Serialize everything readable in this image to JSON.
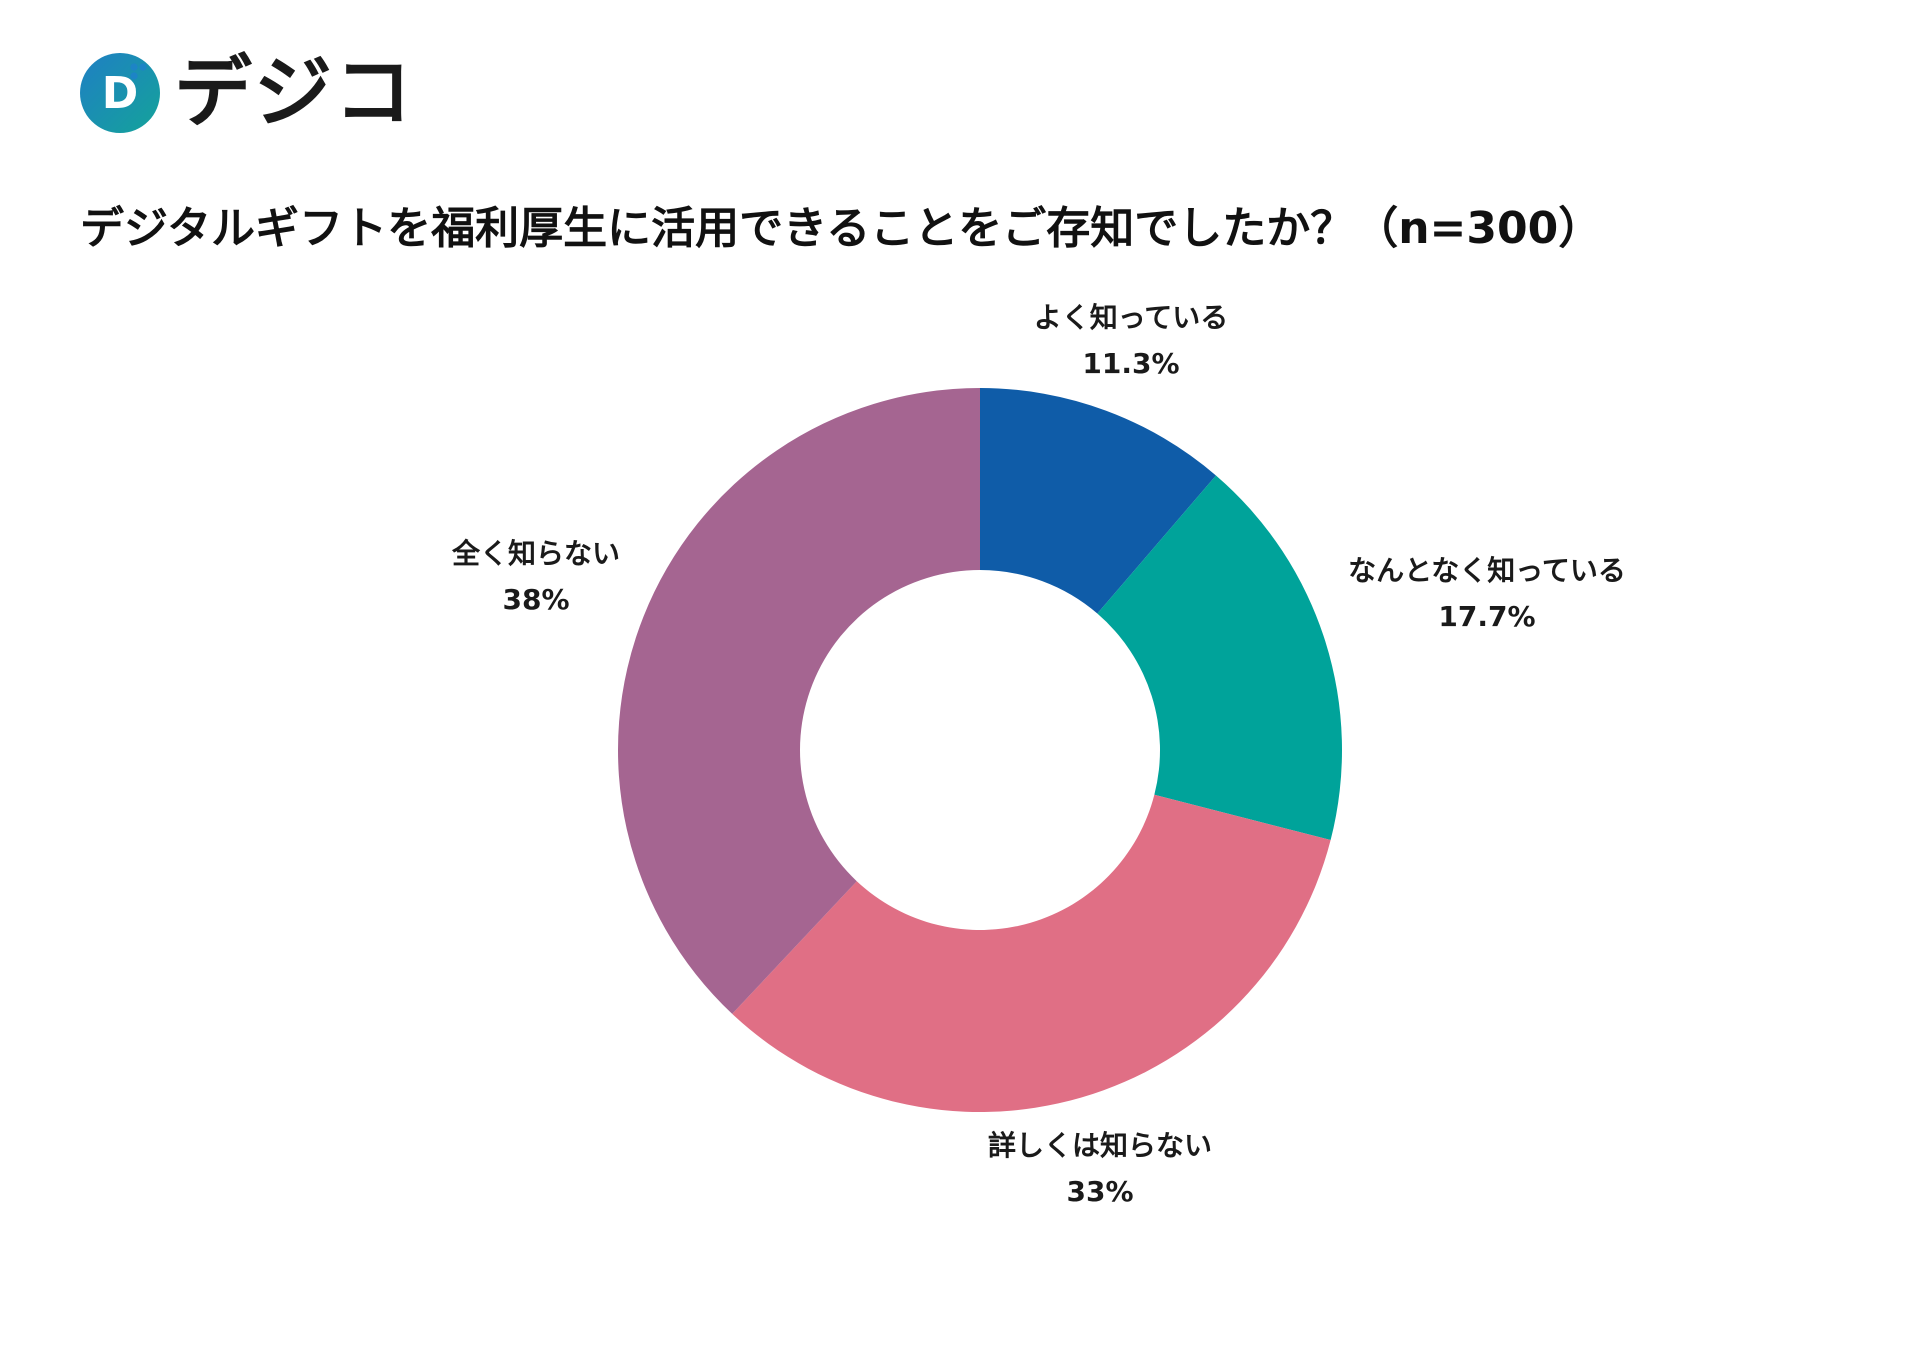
{
  "brand": {
    "name": "デジコ",
    "mark_letter": "D",
    "colors": {
      "mark_start": "#1f7fc4",
      "mark_end": "#14a39a",
      "dots": "#1d84c6"
    }
  },
  "chart_data": {
    "type": "pie",
    "style": "donut",
    "title": "デジタルギフトを福利厚生に活用できることをご存知でしたか？（n=300）",
    "start_angle": "top, clockwise",
    "slices": [
      {
        "label": "よく知っている",
        "value": 11.3,
        "display": "11.3%",
        "color": "#0f5ca8"
      },
      {
        "label": "なんとなく知っている",
        "value": 17.7,
        "display": "17.7%",
        "color": "#00a39a"
      },
      {
        "label": "詳しくは知らない",
        "value": 33,
        "display": "33%",
        "color": "#e06f85"
      },
      {
        "label": "全く知らない",
        "value": 38,
        "display": "38%",
        "color": "#a56591"
      }
    ]
  }
}
